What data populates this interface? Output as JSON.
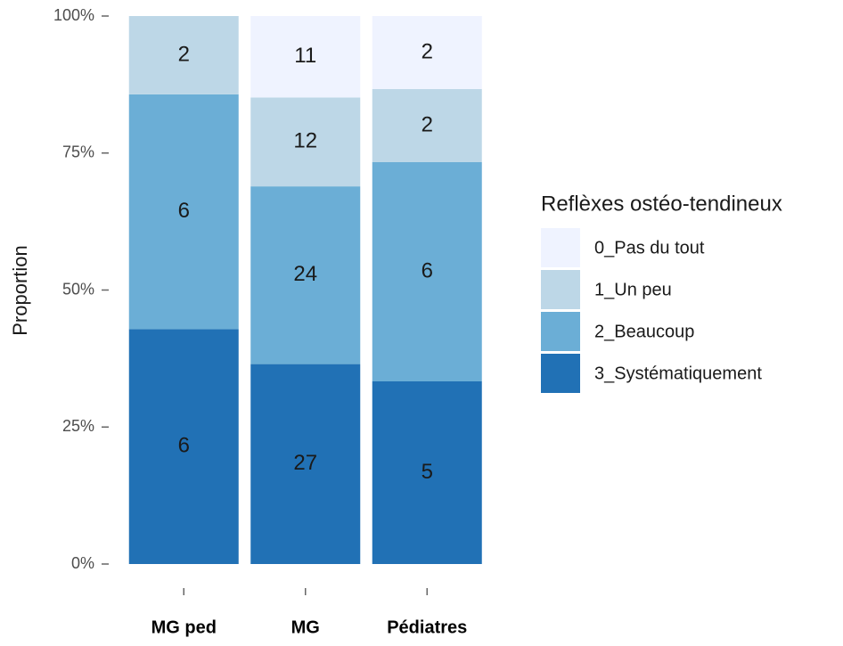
{
  "chart_data": {
    "type": "bar",
    "stacked": "percent",
    "y_label": "Proportion",
    "legend_title": "Reflèxes ostéo-tendineux",
    "legend": "right",
    "categories": [
      "MG ped",
      "MG",
      "Pédiatres"
    ],
    "series": [
      {
        "name": "0_Pas du tout",
        "color": "#eff3ff",
        "values": [
          null,
          11,
          2
        ]
      },
      {
        "name": "1_Un peu",
        "color": "#bdd7e7",
        "values": [
          2,
          12,
          2
        ]
      },
      {
        "name": "2_Beaucoup",
        "color": "#6baed6",
        "values": [
          6,
          24,
          6
        ]
      },
      {
        "name": "3_Systématiquement",
        "color": "#2171b5",
        "values": [
          6,
          27,
          5
        ]
      }
    ],
    "ylim": [
      0,
      100
    ],
    "yticks": [
      {
        "value": 0,
        "label": "0%"
      },
      {
        "value": 25,
        "label": "25%"
      },
      {
        "value": 50,
        "label": "50%"
      },
      {
        "value": 75,
        "label": "75%"
      },
      {
        "value": 100,
        "label": "100%"
      }
    ],
    "grid": false
  }
}
